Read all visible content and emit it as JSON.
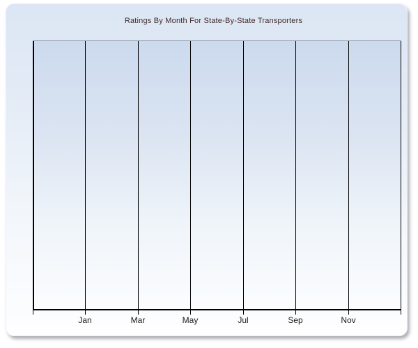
{
  "chart": {
    "title": "Ratings By Month For State-By-State Transporters"
  },
  "chart_data": {
    "type": "line",
    "title": "Ratings By Month For State-By-State Transporters",
    "xlabel": "",
    "ylabel": "",
    "x_tick_labels": [
      "Jan",
      "Mar",
      "May",
      "Jul",
      "Sep",
      "Nov"
    ],
    "x_gridline_count": 8,
    "y_tick_labels": [],
    "series": [],
    "grid": "vertical gridlines only",
    "legend": "none"
  },
  "colors": {
    "panel_gradient_top": "#dce6f4",
    "panel_gradient_bottom": "#fefeff",
    "plot_gradient_top": "#ccdaee",
    "plot_gradient_bottom": "#fbfdff",
    "gridline": "#000000",
    "plot_top_border": "#99a1b1",
    "title_color": "#3f2a2a",
    "axis_label_color": "#1a1a1a"
  }
}
